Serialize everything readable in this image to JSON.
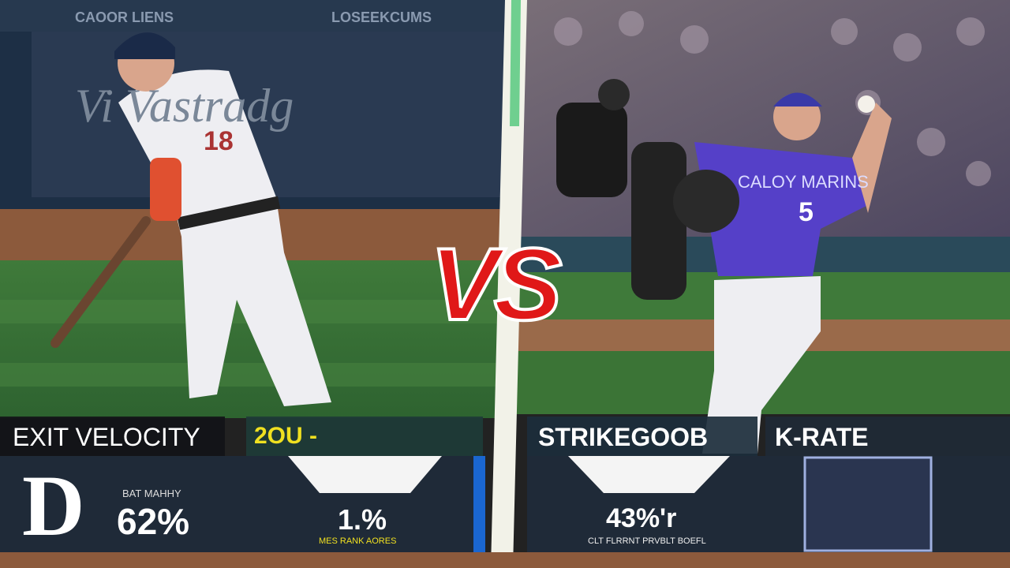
{
  "banner": {
    "left": "CAOOR LIENS",
    "right": "LOSEEKCUMS",
    "wall_text": "Vi Vastradg"
  },
  "vs": "VS",
  "left_panel": {
    "label": "EXIT VELOCITY",
    "value_header": "2OU -",
    "stat_label": "BAT MAHHY",
    "stat": "62%",
    "center_stat": "1.%",
    "center_caption": "MES RANK AORES",
    "logo": "D"
  },
  "right_panel": {
    "label": "STRIKEGOOB",
    "label2": "K-RATE",
    "stat": "43%'r",
    "caption": "CLT FLRRNT PRVBLT BOEFL"
  },
  "jerseys": {
    "batter": "18",
    "pitcher_team": "CALOY MARINS",
    "pitcher_number": "5"
  }
}
